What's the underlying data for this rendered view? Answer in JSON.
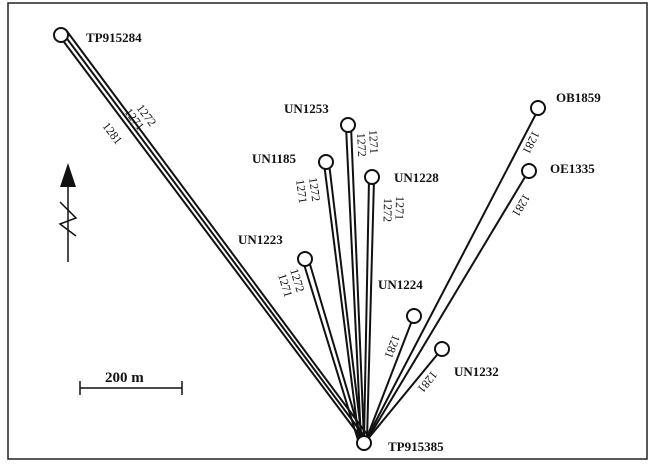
{
  "map": {
    "scale_label": "200 m",
    "north_arrow_icon": "north-arrow-icon",
    "hub": "TP915385",
    "stations": [
      {
        "id": "TP915284",
        "labels": [
          "1272",
          "1271",
          "1281"
        ]
      },
      {
        "id": "UN1253",
        "labels": [
          "1271",
          "1272"
        ]
      },
      {
        "id": "UN1185",
        "labels": [
          "1272",
          "1271"
        ]
      },
      {
        "id": "UN1228",
        "labels": [
          "1271",
          "1272"
        ]
      },
      {
        "id": "UN1223",
        "labels": [
          "1272",
          "1271"
        ]
      },
      {
        "id": "UN1224",
        "labels": [
          "1281"
        ]
      },
      {
        "id": "UN1232",
        "labels": [
          "1281"
        ]
      },
      {
        "id": "OB1859",
        "labels": [
          "1281"
        ]
      },
      {
        "id": "OE1335",
        "labels": [
          "1281"
        ]
      }
    ]
  }
}
